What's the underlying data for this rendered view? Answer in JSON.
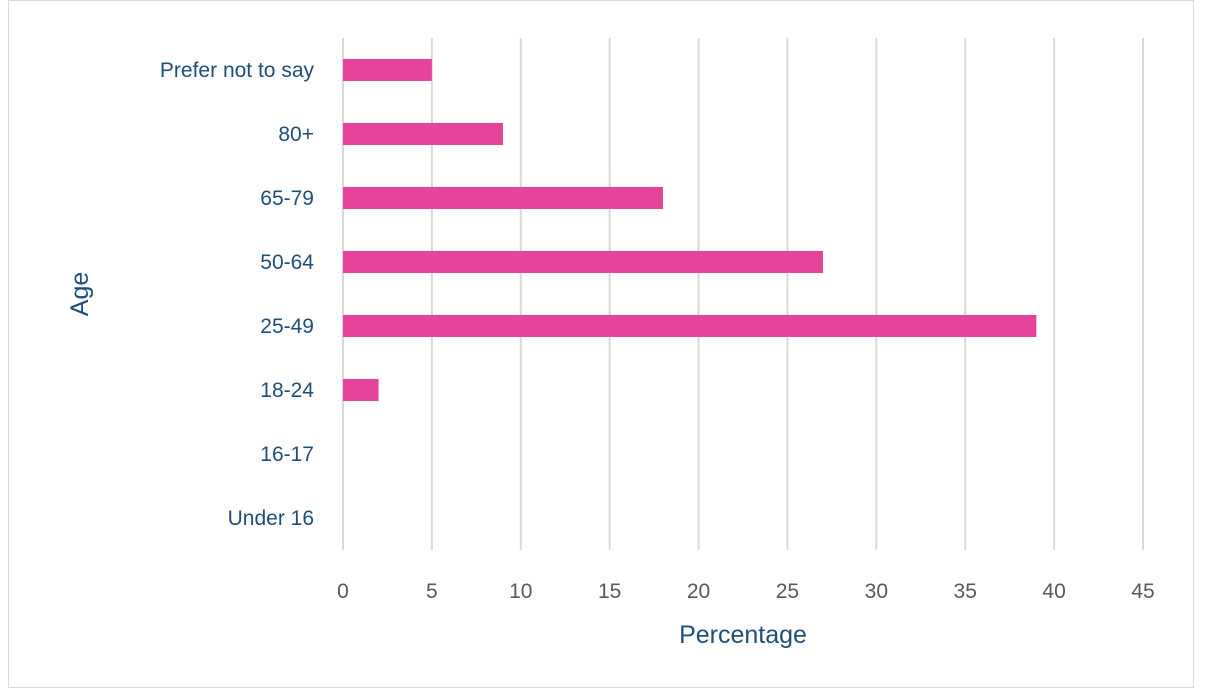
{
  "chart_data": {
    "type": "bar",
    "orientation": "horizontal",
    "categories": [
      "Under 16",
      "16-17",
      "18-24",
      "25-49",
      "50-64",
      "65-79",
      "80+",
      "Prefer not to say"
    ],
    "values": [
      0,
      0,
      2,
      39,
      27,
      18,
      9,
      5
    ],
    "xlabel": "Percentage",
    "ylabel": "Age",
    "xlim": [
      0,
      45
    ],
    "xticks": [
      0,
      5,
      10,
      15,
      20,
      25,
      30,
      35,
      40,
      45
    ],
    "grid": "vertical",
    "legend": "none",
    "colors": {
      "bar": "#e8439b",
      "gridline": "#d9d9d9",
      "category_text": "#1f4e79",
      "tick_text": "#595959",
      "axis_title": "#1f4e79"
    }
  }
}
